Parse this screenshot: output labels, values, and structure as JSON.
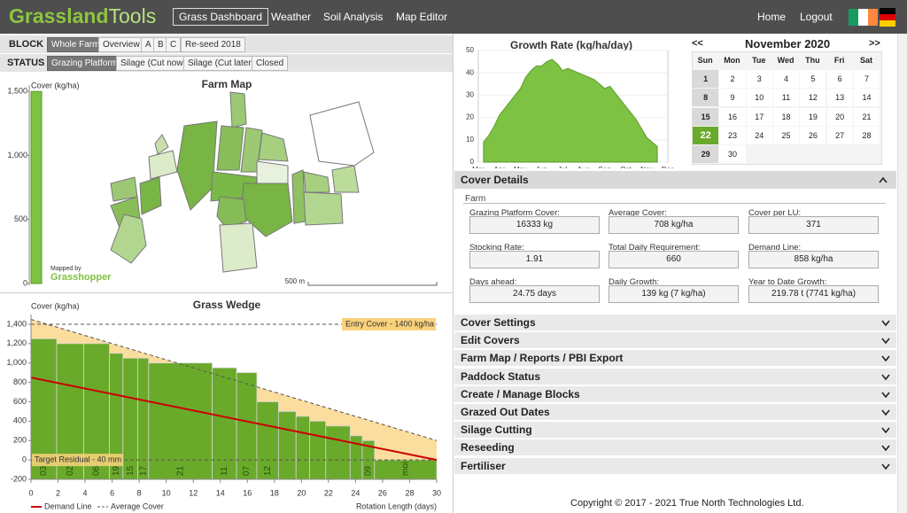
{
  "nav": {
    "logo": [
      "Grassland",
      "Tools"
    ],
    "links": [
      "Grass Dashboard",
      "Weather",
      "Soil Analysis",
      "Map Editor"
    ],
    "right_links": [
      "Home",
      "Logout"
    ]
  },
  "filters": {
    "block": {
      "label": "BLOCK",
      "options": [
        "Whole Farm",
        "Overview",
        "A",
        "B",
        "C",
        "Re-seed 2018"
      ]
    },
    "status": {
      "label": "STATUS",
      "options": [
        "Grazing Platform",
        "Silage (Cut now)",
        "Silage (Cut later)",
        "Closed"
      ]
    }
  },
  "farm_map": {
    "title": "Farm Map",
    "axis_title": "Cover (kg/ha)",
    "ylim": [
      0,
      1550
    ],
    "yticks": [
      0,
      500,
      {
        "value": 1000,
        "label": "1,000"
      },
      {
        "value": 1500,
        "label": "1,500"
      }
    ],
    "cover": 1500,
    "credit": "Mapped by",
    "brand": "Grasshopper",
    "scale_label": "500 m"
  },
  "growth_chart": {
    "type": "area",
    "title": "Growth Rate (kg/ha/day)",
    "categories": [
      "Mar",
      "Apr",
      "May",
      "Jun",
      "Jul",
      "Aug",
      "Sep",
      "Oct",
      "Nov",
      "Dec"
    ],
    "ylim": [
      0,
      50
    ],
    "yticks": [
      0,
      10,
      20,
      30,
      40,
      50
    ],
    "color": "#7dc242",
    "values": [
      null,
      9,
      12,
      16,
      21,
      24,
      27,
      30,
      33,
      38,
      41,
      43,
      43,
      45,
      46,
      44,
      41,
      42,
      41,
      40,
      39,
      38,
      37,
      35,
      33,
      34,
      31,
      28,
      25,
      22,
      19,
      15,
      11,
      9,
      7,
      null,
      null
    ]
  },
  "calendar": {
    "prev": "<<",
    "next": ">>",
    "title": "November 2020",
    "weekdays": [
      "Sun",
      "Mon",
      "Tue",
      "Wed",
      "Thu",
      "Fri",
      "Sat"
    ],
    "weeks": [
      [
        1,
        2,
        3,
        4,
        5,
        6,
        7
      ],
      [
        8,
        9,
        10,
        11,
        12,
        13,
        14
      ],
      [
        15,
        16,
        17,
        18,
        19,
        20,
        21
      ],
      [
        22,
        23,
        24,
        25,
        26,
        27,
        28
      ],
      [
        29,
        30
      ]
    ],
    "today": 22
  },
  "cover_details": {
    "title": "Cover Details",
    "section": "Farm",
    "fields": [
      {
        "label": "Grazing Platform Cover:",
        "value": "16333 kg"
      },
      {
        "label": "Average Cover:",
        "value": "708 kg/ha"
      },
      {
        "label": "Cover per LU:",
        "value": "371"
      },
      {
        "label": "Stocking Rate:",
        "value": "1.91"
      },
      {
        "label": "Total Daily Requirement:",
        "value": "660"
      },
      {
        "label": "Demand Line:",
        "value": "858 kg/ha"
      },
      {
        "label": "Days ahead:",
        "value": "24.75 days"
      },
      {
        "label": "Daily Growth:",
        "value": "139 kg (7 kg/ha)"
      },
      {
        "label": "Year to Date Growth:",
        "value": "219.78 t (7741 kg/ha)"
      }
    ]
  },
  "accordion": [
    "Cover Settings",
    "Edit Covers",
    "Farm Map / Reports / PBI Export",
    "Paddock Status",
    "Create / Manage Blocks",
    "Grazed Out Dates",
    "Silage Cutting",
    "Reseeding",
    "Fertiliser"
  ],
  "footer": "Copyright © 2017 - 2021 True North Technologies Ltd.",
  "grass_wedge": {
    "type": "bar",
    "title": "Grass Wedge",
    "y_title": "Cover (kg/ha)",
    "x_title": "Rotation Length (days)",
    "color": "#6aaa2a",
    "xlim": [
      0,
      30
    ],
    "xticks": [
      0,
      2,
      4,
      6,
      8,
      10,
      12,
      14,
      16,
      18,
      20,
      22,
      24,
      26,
      28,
      30
    ],
    "ylim": [
      -200,
      1500
    ],
    "yticks": [
      -200,
      0,
      200,
      400,
      600,
      800,
      {
        "value": 1000,
        "label": "1,000"
      },
      {
        "value": 1200,
        "label": "1,200"
      },
      {
        "value": 1400,
        "label": "1,400"
      }
    ],
    "bins": [
      0,
      1.9,
      3.9,
      5.8,
      6.8,
      7.9,
      8.7,
      13.4,
      15.2,
      16.7,
      18.3,
      19.6,
      20.6,
      21.8,
      23.6,
      24.5,
      25.4,
      30
    ],
    "categories": [
      "03",
      "02",
      "06",
      "19",
      "15",
      "17",
      "21",
      "11",
      "07",
      "12",
      null,
      null,
      null,
      null,
      null,
      "09",
      "moi"
    ],
    "values": [
      1250,
      1200,
      1200,
      1100,
      1050,
      1050,
      1000,
      950,
      900,
      600,
      500,
      450,
      400,
      350,
      250,
      200,
      0
    ],
    "demand_line": {
      "name": "Demand Line",
      "color": "#cc0000",
      "x": [
        0,
        30
      ],
      "values": [
        850,
        0
      ]
    },
    "average_cover": {
      "name": "Average Cover",
      "color": "#f9d27c",
      "x": [
        0,
        30
      ],
      "values": [
        1450,
        200
      ]
    },
    "entry_cover": {
      "label": "Entry Cover - 1400 kg/ha",
      "value": 1400
    },
    "target_residual": {
      "label": "Target Residual - 40 mm",
      "value": 0
    }
  }
}
